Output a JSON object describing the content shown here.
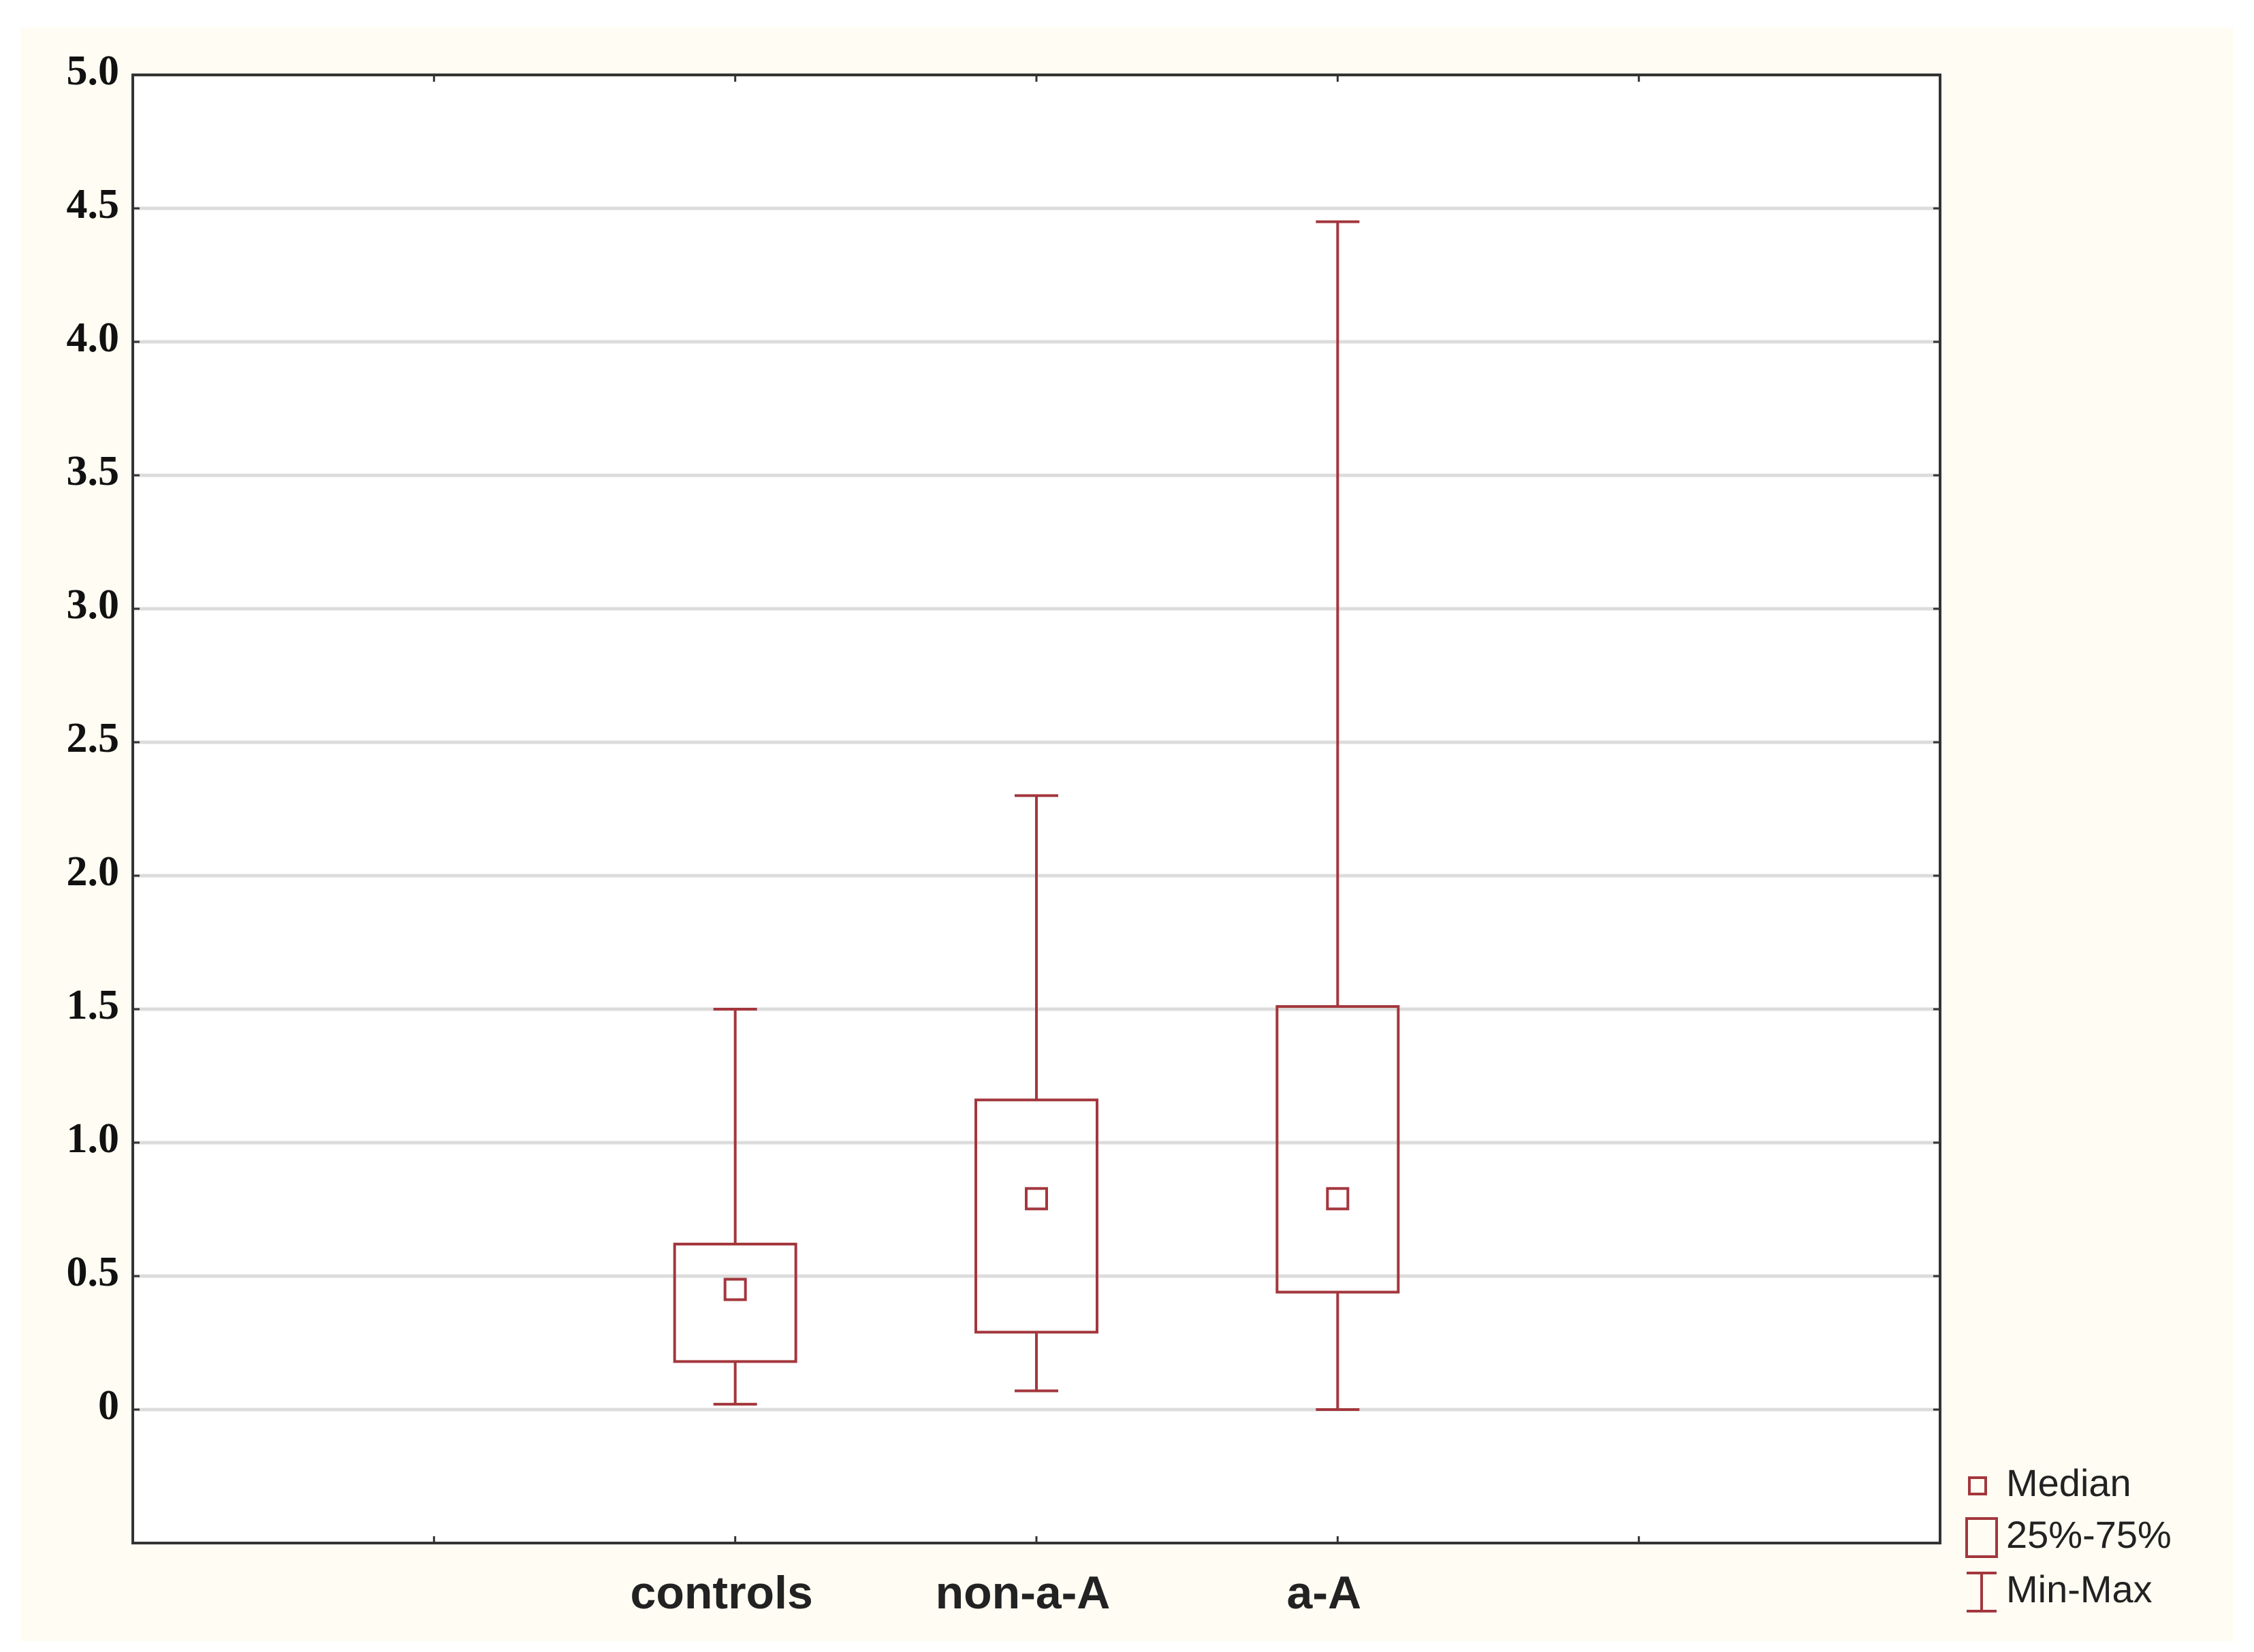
{
  "chart_data": {
    "type": "box",
    "categories": [
      null,
      "controls",
      "non-a-A",
      "a-A",
      null
    ],
    "min": [
      null,
      0.02,
      0.07,
      0,
      null
    ],
    "q1": [
      null,
      0.18,
      0.29,
      0.44,
      null
    ],
    "median": [
      null,
      0.45,
      0.79,
      0.79,
      null
    ],
    "q3": [
      null,
      0.62,
      1.16,
      1.51,
      null
    ],
    "max": [
      null,
      1.5,
      2.3,
      4.45,
      null
    ],
    "color": "#a3373d",
    "ylim": [
      -0.5,
      5.0
    ],
    "yticks": [
      0,
      0.5,
      {
        "value": 1.0,
        "label": "1.0"
      },
      1.5,
      {
        "value": 2.0,
        "label": "2.0"
      },
      2.5,
      {
        "value": 3.0,
        "label": "3.0"
      },
      3.5,
      {
        "value": 4.0,
        "label": "4.0"
      },
      4.5,
      {
        "value": 5.0,
        "label": "5.0"
      }
    ],
    "grid": true,
    "legend": [
      "Median",
      "25%-75%",
      "Min-Max"
    ],
    "legend_position": "lower right"
  }
}
